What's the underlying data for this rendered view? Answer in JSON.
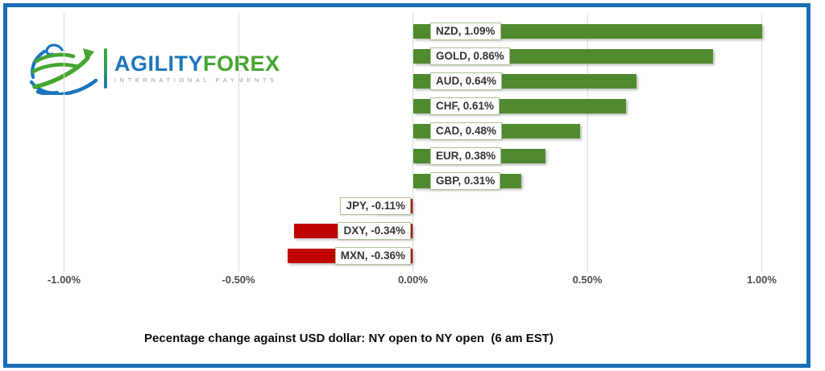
{
  "frame": {
    "border_color": "#1b6db5"
  },
  "logo": {
    "brand_part1": "AGILITY",
    "brand_part2": "FOREX",
    "subtitle": "INTERNATIONAL PAYMENTS",
    "brand_blue": "#1c75bc",
    "brand_green": "#43a62f"
  },
  "chart_data": {
    "type": "bar",
    "orientation": "horizontal",
    "title": "Pecentage change against USD dollar: NY open to NY open  (6 am EST)",
    "categories": [
      "NZD",
      "GOLD",
      "AUD",
      "CHF",
      "CAD",
      "EUR",
      "GBP",
      "JPY",
      "DXY",
      "MXN"
    ],
    "values": [
      1.09,
      0.86,
      0.64,
      0.61,
      0.48,
      0.38,
      0.31,
      -0.11,
      -0.34,
      -0.36
    ],
    "data_labels": [
      "NZD, 1.09%",
      "GOLD, 0.86%",
      "AUD, 0.64%",
      "CHF, 0.61%",
      "CAD, 0.48%",
      "EUR, 0.38%",
      "GBP, 0.31%",
      "JPY, -0.11%",
      "DXY, -0.34%",
      "MXN, -0.36%"
    ],
    "x_ticks": [
      "-1.00%",
      "-0.50%",
      "0.00%",
      "0.50%",
      "1.00%"
    ],
    "x_tick_values": [
      -1.0,
      -0.5,
      0.0,
      0.5,
      1.0
    ],
    "xlim": [
      -1.0,
      1.0
    ],
    "grid": true,
    "legend_key_rows": [
      "JPY"
    ],
    "positive_color": "#4f8a2f",
    "negative_color": "#c00000",
    "gridline_color": "#d9d9d9",
    "label_box_border_color": "#a9c48f",
    "axis_label_color": "#4d4d4d"
  }
}
